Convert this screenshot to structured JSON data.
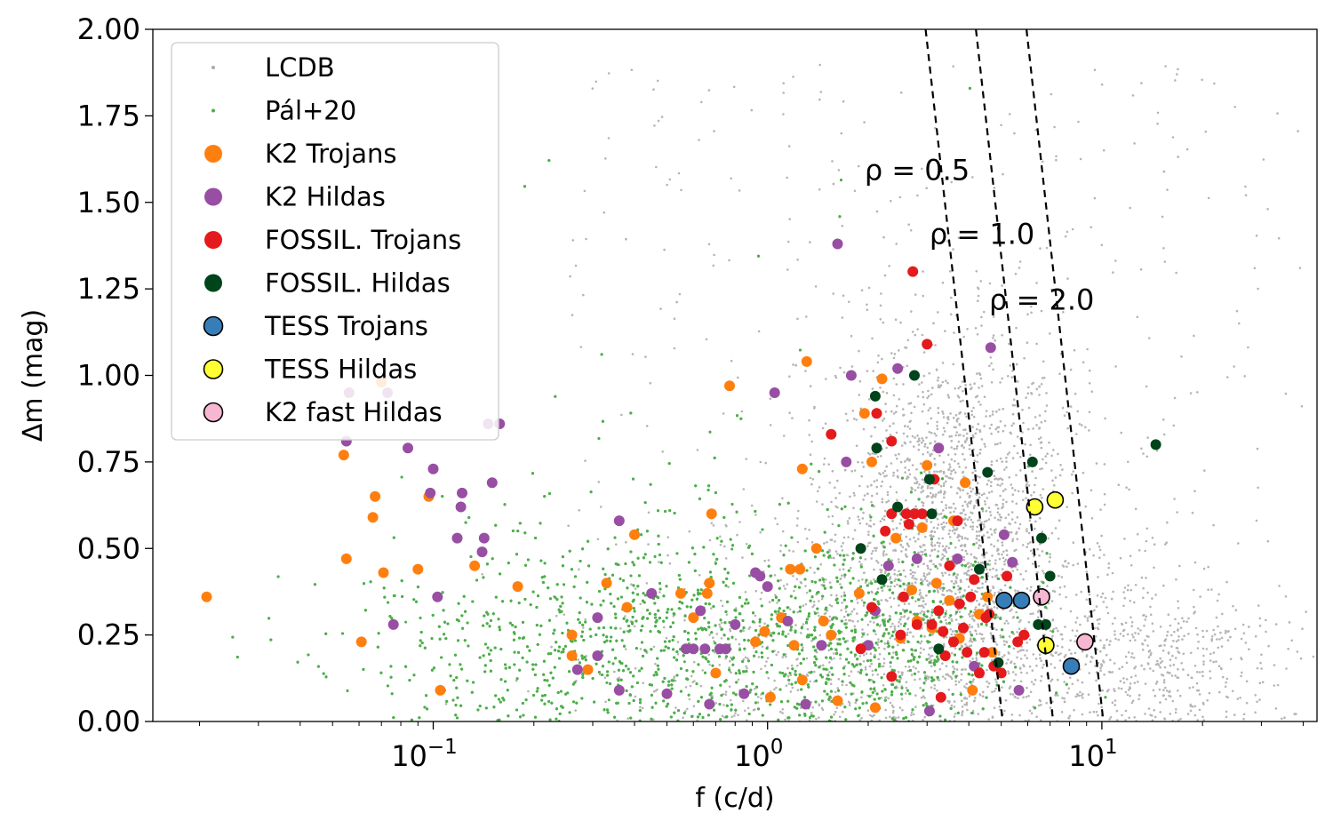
{
  "chart_data": {
    "type": "scatter",
    "title": "",
    "xlabel": "f (c/d)",
    "ylabel": "Δm (mag)",
    "xscale": "log",
    "xlim": [
      0.0145,
      44
    ],
    "ylim": [
      0.0,
      2.0
    ],
    "x_ticks": [
      {
        "value": 0.1,
        "base": "10",
        "exp": "−1"
      },
      {
        "value": 1,
        "base": "10",
        "exp": "0"
      },
      {
        "value": 10,
        "base": "10",
        "exp": "1"
      }
    ],
    "y_ticks": [
      "0.00",
      "0.25",
      "0.50",
      "0.75",
      "1.00",
      "1.25",
      "1.50",
      "1.75",
      "2.00"
    ],
    "legend_position": "upper-left",
    "background_series": [
      {
        "name": "LCDB",
        "color": "#a9a9a9",
        "approx_count": 3600,
        "note": "dense grey cloud, concentrated around f=2–10 c/d, Δm 0–1.2"
      },
      {
        "name": "Pál+20",
        "color": "#4daf4a",
        "approx_count": 5200,
        "note": "dense green cloud spanning f=0.03–12 c/d, Δm 0–0.9"
      }
    ],
    "series": [
      {
        "name": "K2 Trojans",
        "color": "#ff7f0e",
        "edge": "none",
        "points": [
          [
            0.021,
            0.36
          ],
          [
            0.054,
            0.77
          ],
          [
            0.055,
            0.47
          ],
          [
            0.061,
            0.23
          ],
          [
            0.066,
            0.59
          ],
          [
            0.067,
            0.65
          ],
          [
            0.07,
            0.98
          ],
          [
            0.071,
            0.43
          ],
          [
            0.09,
            0.44
          ],
          [
            0.097,
            0.65
          ],
          [
            0.105,
            0.09
          ],
          [
            0.133,
            0.45
          ],
          [
            0.179,
            0.39
          ],
          [
            0.26,
            0.19
          ],
          [
            0.26,
            0.25
          ],
          [
            0.29,
            0.15
          ],
          [
            0.33,
            0.4
          ],
          [
            0.38,
            0.33
          ],
          [
            0.4,
            0.54
          ],
          [
            0.55,
            0.37
          ],
          [
            0.6,
            0.3
          ],
          [
            0.66,
            0.37
          ],
          [
            0.67,
            0.4
          ],
          [
            0.68,
            0.6
          ],
          [
            0.7,
            0.14
          ],
          [
            0.77,
            0.97
          ],
          [
            0.92,
            0.23
          ],
          [
            0.98,
            0.26
          ],
          [
            1.02,
            0.07
          ],
          [
            1.1,
            0.3
          ],
          [
            1.17,
            0.44
          ],
          [
            1.2,
            0.22
          ],
          [
            1.25,
            0.44
          ],
          [
            1.27,
            0.12
          ],
          [
            1.27,
            0.73
          ],
          [
            1.31,
            1.04
          ],
          [
            1.4,
            0.5
          ],
          [
            1.47,
            0.29
          ],
          [
            1.55,
            0.25
          ],
          [
            1.62,
            0.06
          ],
          [
            1.88,
            0.37
          ],
          [
            1.95,
            0.89
          ],
          [
            2.05,
            0.75
          ],
          [
            2.1,
            0.04
          ],
          [
            2.2,
            0.99
          ],
          [
            2.42,
            0.53
          ],
          [
            2.5,
            0.24
          ],
          [
            2.7,
            0.38
          ],
          [
            2.8,
            0.29
          ],
          [
            2.9,
            0.56
          ],
          [
            3.0,
            0.74
          ],
          [
            3.1,
            0.27
          ],
          [
            3.2,
            0.4
          ],
          [
            3.35,
            0.26
          ],
          [
            3.5,
            0.35
          ],
          [
            3.6,
            0.58
          ],
          [
            3.75,
            0.24
          ],
          [
            3.9,
            0.69
          ],
          [
            4.1,
            0.09
          ],
          [
            4.3,
            0.31
          ],
          [
            4.55,
            0.36
          ],
          [
            4.7,
            0.2
          ]
        ]
      },
      {
        "name": "K2 Hildas",
        "color": "#984ea3",
        "edge": "none",
        "points": [
          [
            0.055,
            0.81
          ],
          [
            0.056,
            0.95
          ],
          [
            0.073,
            0.95
          ],
          [
            0.076,
            0.28
          ],
          [
            0.084,
            0.79
          ],
          [
            0.098,
            0.66
          ],
          [
            0.1,
            0.73
          ],
          [
            0.103,
            0.36
          ],
          [
            0.118,
            0.53
          ],
          [
            0.121,
            0.62
          ],
          [
            0.122,
            0.66
          ],
          [
            0.14,
            0.49
          ],
          [
            0.142,
            0.53
          ],
          [
            0.146,
            0.86
          ],
          [
            0.15,
            0.69
          ],
          [
            0.158,
            0.86
          ],
          [
            0.27,
            0.15
          ],
          [
            0.31,
            0.3
          ],
          [
            0.31,
            0.19
          ],
          [
            0.36,
            0.09
          ],
          [
            0.36,
            0.58
          ],
          [
            0.45,
            0.37
          ],
          [
            0.5,
            0.08
          ],
          [
            0.57,
            0.21
          ],
          [
            0.6,
            0.21
          ],
          [
            0.63,
            0.32
          ],
          [
            0.65,
            0.21
          ],
          [
            0.67,
            0.05
          ],
          [
            0.72,
            0.21
          ],
          [
            0.75,
            0.21
          ],
          [
            0.8,
            0.28
          ],
          [
            0.92,
            0.43
          ],
          [
            0.95,
            0.42
          ],
          [
            1.0,
            0.39
          ],
          [
            1.05,
            0.95
          ],
          [
            1.15,
            0.29
          ],
          [
            1.3,
            0.05
          ],
          [
            1.45,
            0.22
          ],
          [
            1.62,
            1.38
          ],
          [
            1.72,
            0.75
          ],
          [
            1.78,
            1.0
          ],
          [
            2.1,
            0.32
          ],
          [
            2.3,
            0.45
          ],
          [
            2.45,
            1.02
          ],
          [
            2.8,
            0.47
          ],
          [
            3.25,
            0.79
          ],
          [
            3.7,
            0.47
          ],
          [
            4.15,
            0.16
          ],
          [
            4.65,
            1.08
          ],
          [
            5.1,
            0.54
          ],
          [
            5.4,
            0.46
          ],
          [
            5.65,
            0.09
          ],
          [
            2.0,
            0.22
          ],
          [
            3.05,
            0.03
          ],
          [
            0.85,
            0.08
          ]
        ]
      },
      {
        "name": "FOSSIL. Trojans",
        "color": "#e41a1c",
        "edge": "none",
        "points": [
          [
            1.55,
            0.83
          ],
          [
            2.12,
            0.89
          ],
          [
            2.25,
            0.55
          ],
          [
            2.35,
            0.6
          ],
          [
            2.35,
            0.81
          ],
          [
            2.5,
            0.25
          ],
          [
            2.6,
            0.6
          ],
          [
            2.65,
            0.57
          ],
          [
            2.72,
            1.3
          ],
          [
            2.75,
            0.6
          ],
          [
            2.8,
            0.28
          ],
          [
            2.9,
            0.6
          ],
          [
            3.0,
            1.09
          ],
          [
            3.1,
            0.28
          ],
          [
            3.15,
            0.7
          ],
          [
            3.25,
            0.32
          ],
          [
            3.35,
            0.26
          ],
          [
            3.4,
            0.19
          ],
          [
            3.5,
            0.45
          ],
          [
            3.6,
            0.23
          ],
          [
            3.75,
            0.34
          ],
          [
            3.85,
            0.27
          ],
          [
            3.95,
            0.2
          ],
          [
            4.05,
            0.36
          ],
          [
            4.15,
            0.41
          ],
          [
            4.3,
            0.14
          ],
          [
            4.45,
            0.2
          ],
          [
            4.75,
            0.16
          ],
          [
            5.0,
            0.14
          ],
          [
            5.2,
            0.42
          ],
          [
            5.6,
            0.23
          ],
          [
            5.85,
            0.25
          ],
          [
            2.05,
            0.33
          ],
          [
            1.9,
            0.21
          ],
          [
            2.35,
            0.13
          ],
          [
            2.55,
            0.36
          ],
          [
            3.3,
            0.07
          ],
          [
            3.7,
            0.58
          ],
          [
            4.6,
            0.31
          ],
          [
            4.5,
            0.3
          ]
        ]
      },
      {
        "name": "FOSSIL. Hildas",
        "color": "#00441b",
        "edge": "none",
        "points": [
          [
            1.9,
            0.5
          ],
          [
            2.1,
            0.94
          ],
          [
            2.12,
            0.79
          ],
          [
            2.2,
            0.41
          ],
          [
            2.45,
            0.62
          ],
          [
            2.75,
            1.0
          ],
          [
            3.05,
            0.7
          ],
          [
            3.1,
            0.6
          ],
          [
            3.25,
            0.21
          ],
          [
            4.3,
            0.44
          ],
          [
            4.55,
            0.72
          ],
          [
            4.9,
            0.17
          ],
          [
            6.2,
            0.75
          ],
          [
            6.45,
            0.28
          ],
          [
            6.6,
            0.53
          ],
          [
            6.8,
            0.28
          ],
          [
            7.0,
            0.42
          ],
          [
            14.5,
            0.8
          ]
        ]
      },
      {
        "name": "TESS Trojans",
        "color": "#377eb8",
        "edge": "#000000",
        "points": [
          [
            5.1,
            0.35
          ],
          [
            5.75,
            0.35
          ],
          [
            8.1,
            0.16
          ]
        ]
      },
      {
        "name": "TESS Hildas",
        "color": "#ffff33",
        "edge": "#000000",
        "points": [
          [
            6.3,
            0.62
          ],
          [
            7.25,
            0.64
          ],
          [
            6.8,
            0.22
          ]
        ]
      },
      {
        "name": "K2 fast Hildas",
        "color": "#f7b6d2",
        "edge": "#000000",
        "points": [
          [
            6.6,
            0.36
          ],
          [
            8.9,
            0.23
          ]
        ]
      }
    ],
    "reference_lines": [
      {
        "label": "ρ = 0.5",
        "style": "dashed",
        "x_at_ymax": 2.97,
        "x_at_ymin": 5.05,
        "label_x": 1.95,
        "label_y": 1.565
      },
      {
        "label": "ρ = 1.0",
        "style": "dashed",
        "x_at_ymax": 4.2,
        "x_at_ymin": 7.15,
        "label_x": 3.05,
        "label_y": 1.38
      },
      {
        "label": "ρ = 2.0",
        "style": "dashed",
        "x_at_ymax": 5.95,
        "x_at_ymin": 10.1,
        "label_x": 4.6,
        "label_y": 1.19
      }
    ]
  }
}
